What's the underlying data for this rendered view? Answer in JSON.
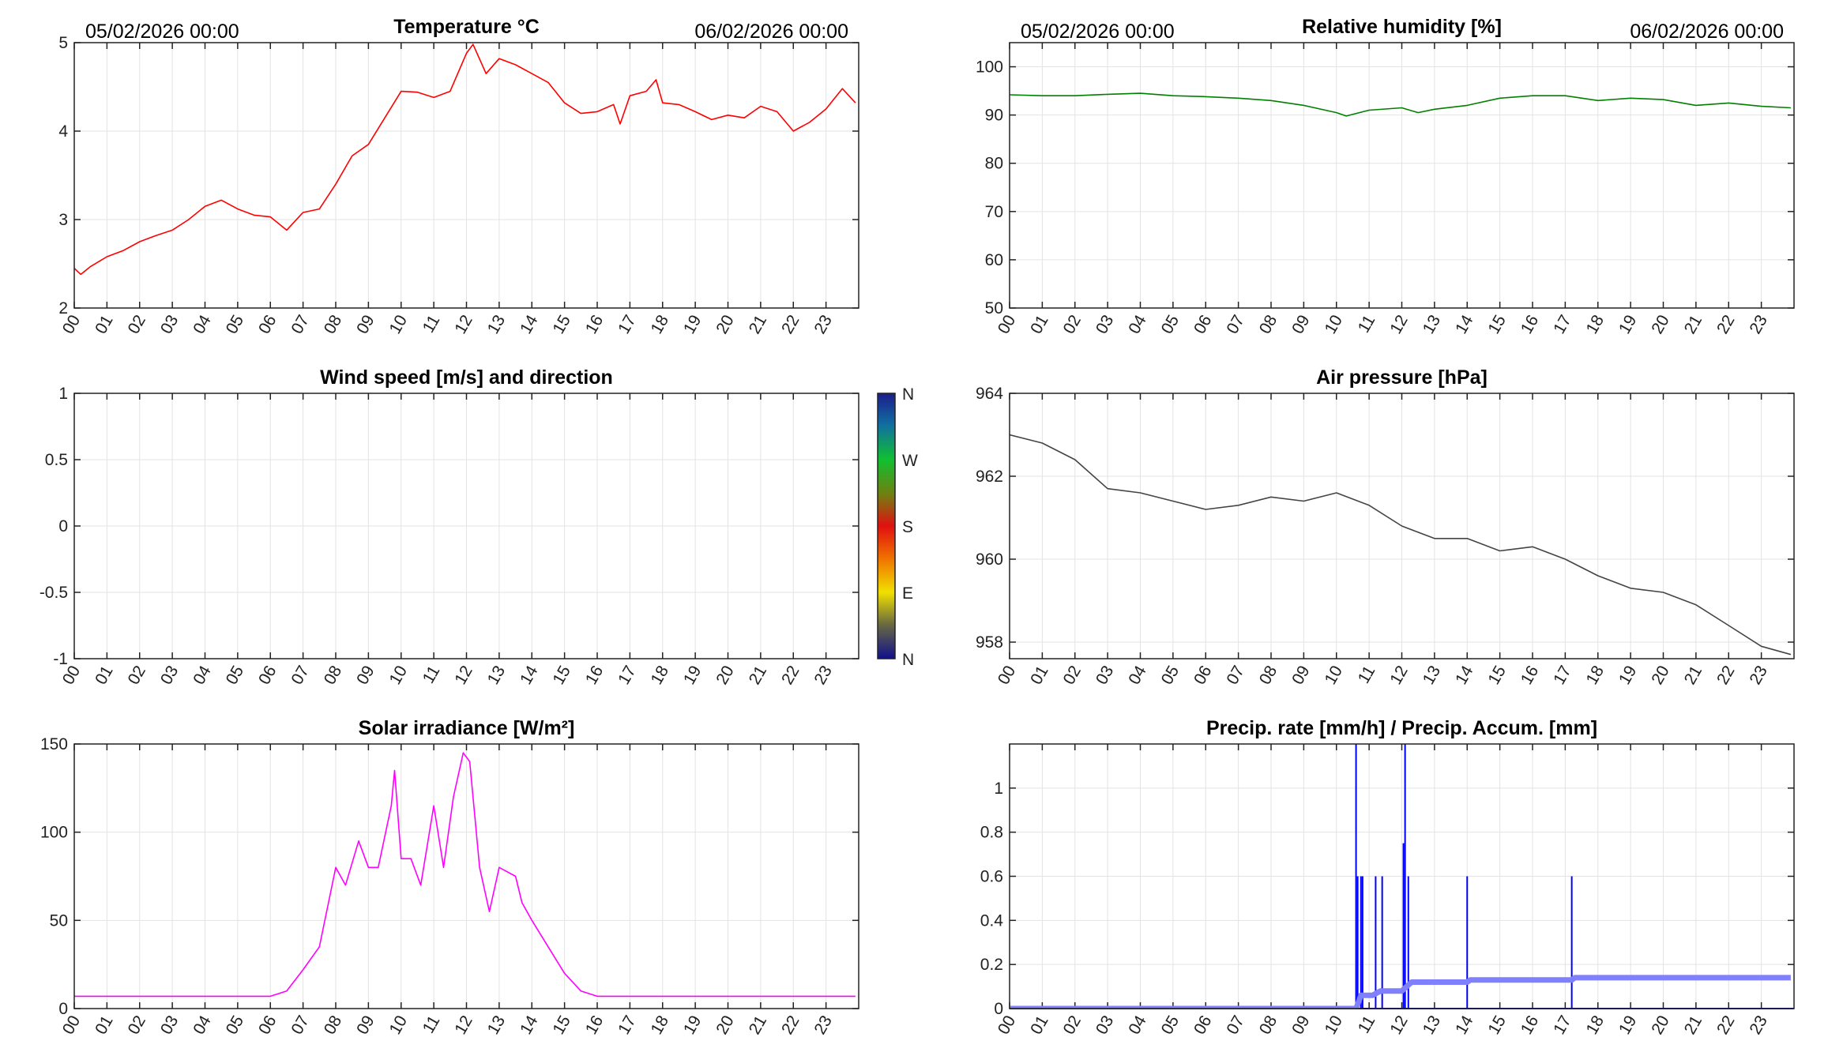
{
  "header": {
    "start_date": "05/02/2026 00:00",
    "end_date": "06/02/2026 00:00"
  },
  "x_tick_labels": [
    "00",
    "01",
    "02",
    "03",
    "04",
    "05",
    "06",
    "07",
    "08",
    "09",
    "10",
    "11",
    "12",
    "13",
    "14",
    "15",
    "16",
    "17",
    "18",
    "19",
    "20",
    "21",
    "22",
    "23"
  ],
  "colors": {
    "temperature": "#ff0000",
    "humidity": "#008000",
    "pressure": "#444444",
    "solar": "#ff00ff",
    "precip_rate": "#0000ff",
    "precip_accum": "#8080ff",
    "grid": "#e3e3e3"
  },
  "colorbar": {
    "labels": [
      "N",
      "W",
      "S",
      "E",
      "N"
    ]
  },
  "chart_data": [
    {
      "type": "line",
      "title": "Temperature °C",
      "xlim": [
        0,
        24
      ],
      "ylim": [
        2,
        5
      ],
      "yticks": [
        2,
        3,
        4,
        5
      ],
      "color_key": "temperature",
      "x": [
        0,
        0.2,
        0.5,
        1,
        1.5,
        2,
        2.5,
        3,
        3.5,
        4,
        4.5,
        5,
        5.5,
        6,
        6.5,
        7,
        7.5,
        8,
        8.5,
        9,
        9.5,
        10,
        10.5,
        11,
        11.5,
        12,
        12.2,
        12.6,
        13,
        13.5,
        14,
        14.5,
        15,
        15.5,
        16,
        16.5,
        16.7,
        17,
        17.5,
        17.8,
        18,
        18.5,
        19,
        19.5,
        20,
        20.5,
        21,
        21.5,
        22,
        22.5,
        23,
        23.5,
        23.9
      ],
      "y": [
        2.45,
        2.38,
        2.47,
        2.58,
        2.65,
        2.75,
        2.82,
        2.88,
        3.0,
        3.15,
        3.22,
        3.12,
        3.05,
        3.03,
        2.88,
        3.08,
        3.12,
        3.4,
        3.72,
        3.85,
        4.15,
        4.45,
        4.44,
        4.38,
        4.45,
        4.88,
        4.98,
        4.65,
        4.82,
        4.75,
        4.65,
        4.55,
        4.32,
        4.2,
        4.22,
        4.3,
        4.08,
        4.4,
        4.45,
        4.58,
        4.32,
        4.3,
        4.22,
        4.13,
        4.18,
        4.15,
        4.28,
        4.22,
        4.0,
        4.1,
        4.25,
        4.48,
        4.32
      ]
    },
    {
      "type": "line",
      "title": "Relative humidity [%]",
      "xlim": [
        0,
        24
      ],
      "ylim": [
        50,
        105
      ],
      "yticks": [
        50,
        60,
        70,
        80,
        90,
        100
      ],
      "color_key": "humidity",
      "x": [
        0,
        1,
        2,
        3,
        4,
        5,
        6,
        7,
        8,
        9,
        10,
        10.3,
        11,
        12,
        12.5,
        13,
        14,
        15,
        16,
        17,
        18,
        19,
        20,
        21,
        22,
        23,
        23.9
      ],
      "y": [
        94.2,
        94,
        94,
        94.3,
        94.5,
        94,
        93.8,
        93.5,
        93,
        92,
        90.5,
        89.8,
        91,
        91.5,
        90.5,
        91.2,
        92,
        93.5,
        94,
        94,
        93,
        93.5,
        93.2,
        92,
        92.5,
        91.8,
        91.5
      ]
    },
    {
      "type": "line",
      "title": "Wind speed [m/s] and direction",
      "xlim": [
        0,
        24
      ],
      "ylim": [
        -1,
        1
      ],
      "yticks": [
        -1,
        -0.5,
        0,
        0.5,
        1
      ],
      "color_key": "temperature",
      "x": [],
      "y": []
    },
    {
      "type": "line",
      "title": "Air pressure [hPa]",
      "xlim": [
        0,
        24
      ],
      "ylim": [
        957.6,
        964
      ],
      "yticks": [
        958,
        960,
        962,
        964
      ],
      "color_key": "pressure",
      "x": [
        0,
        1,
        2,
        3,
        4,
        5,
        6,
        7,
        8,
        9,
        10,
        11,
        12,
        13,
        14,
        15,
        16,
        17,
        18,
        19,
        20,
        21,
        22,
        23,
        23.9
      ],
      "y": [
        963.0,
        962.8,
        962.4,
        961.7,
        961.6,
        961.4,
        961.2,
        961.3,
        961.5,
        961.4,
        961.6,
        961.3,
        960.8,
        960.5,
        960.5,
        960.2,
        960.3,
        960.0,
        959.6,
        959.3,
        959.2,
        958.9,
        958.4,
        957.9,
        957.7
      ]
    },
    {
      "type": "line",
      "title": "Solar irradiance [W/m²]",
      "xlim": [
        0,
        24
      ],
      "ylim": [
        0,
        150
      ],
      "yticks": [
        0,
        50,
        100,
        150
      ],
      "color_key": "solar",
      "x": [
        0,
        1,
        2,
        3,
        4,
        5,
        6,
        6.5,
        7,
        7.5,
        8,
        8.3,
        8.7,
        9,
        9.3,
        9.7,
        9.8,
        10,
        10.3,
        10.6,
        11,
        11.3,
        11.6,
        11.9,
        12.1,
        12.4,
        12.7,
        13,
        13.5,
        13.7,
        14,
        14.5,
        15,
        15.5,
        16,
        17,
        18,
        19,
        20,
        21,
        22,
        23,
        23.9
      ],
      "y": [
        7,
        7,
        7,
        7,
        7,
        7,
        7,
        10,
        22,
        35,
        80,
        70,
        95,
        80,
        80,
        115,
        135,
        85,
        85,
        70,
        115,
        80,
        120,
        145,
        140,
        80,
        55,
        80,
        75,
        60,
        50,
        35,
        20,
        10,
        7,
        7,
        7,
        7,
        7,
        7,
        7,
        7,
        7
      ]
    },
    {
      "type": "line",
      "title": "Precip. rate [mm/h] / Precip. Accum. [mm]",
      "xlim": [
        0,
        24
      ],
      "ylim": [
        0,
        1.2
      ],
      "yticks": [
        0,
        0.2,
        0.4,
        0.6,
        0.8,
        1
      ],
      "color_key": "precip_rate",
      "series": [
        {
          "name": "Precip. rate",
          "color_key": "precip_rate",
          "type": "spikes",
          "x": [
            10.6,
            10.65,
            10.75,
            10.8,
            11.2,
            11.4,
            12.05,
            12.1,
            12.2,
            14.0,
            17.2
          ],
          "y": [
            1.2,
            0.6,
            0.6,
            0.6,
            0.6,
            0.6,
            0.75,
            1.2,
            0.6,
            0.6,
            0.6
          ]
        },
        {
          "name": "Precip. Accum.",
          "color_key": "precip_accum",
          "type": "step",
          "x": [
            0,
            10.6,
            10.75,
            11.1,
            11.35,
            12.0,
            12.3,
            14.0,
            14.1,
            17.2,
            17.3,
            23.9
          ],
          "y": [
            0,
            0,
            0.06,
            0.06,
            0.08,
            0.08,
            0.12,
            0.12,
            0.13,
            0.13,
            0.14,
            0.14
          ]
        }
      ]
    }
  ]
}
